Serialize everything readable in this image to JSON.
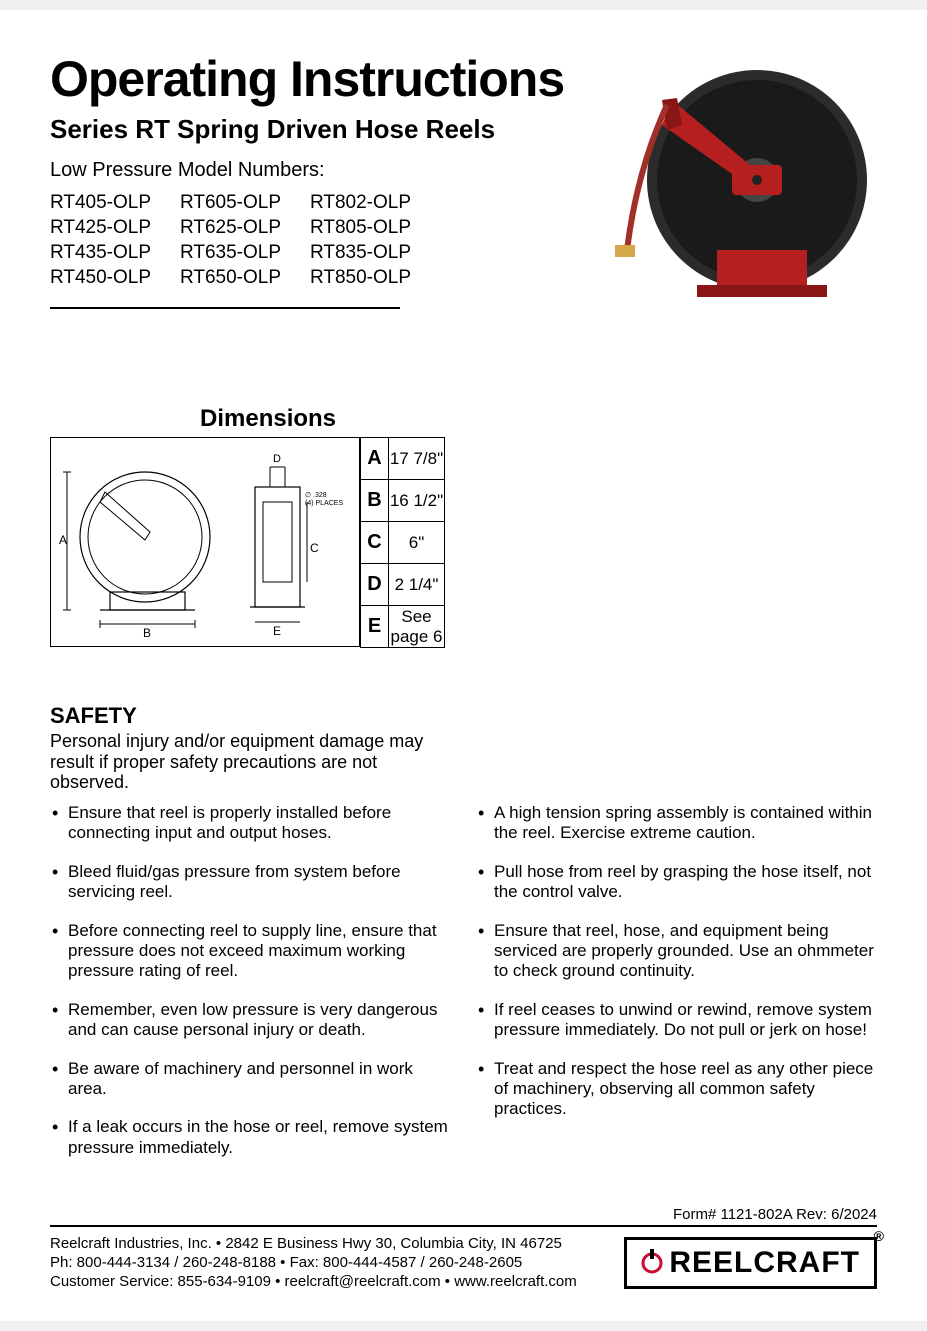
{
  "header": {
    "title": "Operating Instructions",
    "subtitle": "Series RT Spring Driven Hose Reels",
    "models_label": "Low Pressure Model Numbers:",
    "models": [
      "RT405-OLP",
      "RT605-OLP",
      "RT802-OLP",
      "RT425-OLP",
      "RT625-OLP",
      "RT805-OLP",
      "RT435-OLP",
      "RT635-OLP",
      "RT835-OLP",
      "RT450-OLP",
      "RT650-OLP",
      "RT850-OLP"
    ]
  },
  "product_image": {
    "reel_color": "#2b2b2b",
    "arm_color": "#b61f1f",
    "hose_color": "#a03028",
    "nozzle_color": "#d4a84a"
  },
  "dimensions": {
    "title": "Dimensions",
    "diagram_labels": {
      "A": "A",
      "B": "B",
      "C": "C",
      "D": "D",
      "E": "E",
      "note": "∅ .328\n(4) PLACES"
    },
    "rows": [
      {
        "key": "A",
        "val": "17 7/8\""
      },
      {
        "key": "B",
        "val": "16 1/2\""
      },
      {
        "key": "C",
        "val": "6\""
      },
      {
        "key": "D",
        "val": "2 1/4\""
      },
      {
        "key": "E",
        "val": "See page 6"
      }
    ]
  },
  "safety": {
    "title": "SAFETY",
    "intro": "Personal injury and/or equipment damage may result if proper safety precautions are not observed.",
    "left": [
      "Ensure that reel is properly installed before connecting input and output hoses.",
      "Bleed fluid/gas pressure from system before servicing reel.",
      "Before connecting reel to supply line, ensure that pressure does not exceed maximum working pressure rating of reel.",
      "Remember, even low pressure is very dangerous and can cause personal injury or death.",
      "Be aware of machinery and personnel in work area.",
      "If a leak occurs in the hose or reel, remove system pressure immediately."
    ],
    "right": [
      "A high tension spring assembly is contained within the reel. Exercise extreme caution.",
      "Pull hose from reel by grasping the hose itself, not the control valve.",
      "Ensure that reel, hose, and equipment being serviced are properly grounded. Use an ohmmeter to check ground continuity.",
      "If reel ceases to unwind or rewind, remove system pressure immediately.  Do not pull or jerk on hose!",
      "Treat and respect the hose reel as any other piece of machinery, observing all common safety practices."
    ]
  },
  "footer": {
    "form_rev": "Form# 1121-802A  Rev: 6/2024",
    "line1": "Reelcraft Industries, Inc.  •  2842 E Business Hwy 30, Columbia City, IN 46725",
    "line2": "Ph: 800-444-3134 / 260-248-8188  •  Fax: 800-444-4587 / 260-248-2605",
    "line3": "Customer Service: 855-634-9109  •  reelcraft@reelcraft.com  •  www.reelcraft.com",
    "logo_text": "REELCRAFT",
    "logo_reg": "®"
  },
  "style": {
    "page_bg": "#ffffff",
    "text_color": "#000000",
    "title_fontsize": 50,
    "subtitle_fontsize": 26,
    "body_fontsize": 17
  }
}
